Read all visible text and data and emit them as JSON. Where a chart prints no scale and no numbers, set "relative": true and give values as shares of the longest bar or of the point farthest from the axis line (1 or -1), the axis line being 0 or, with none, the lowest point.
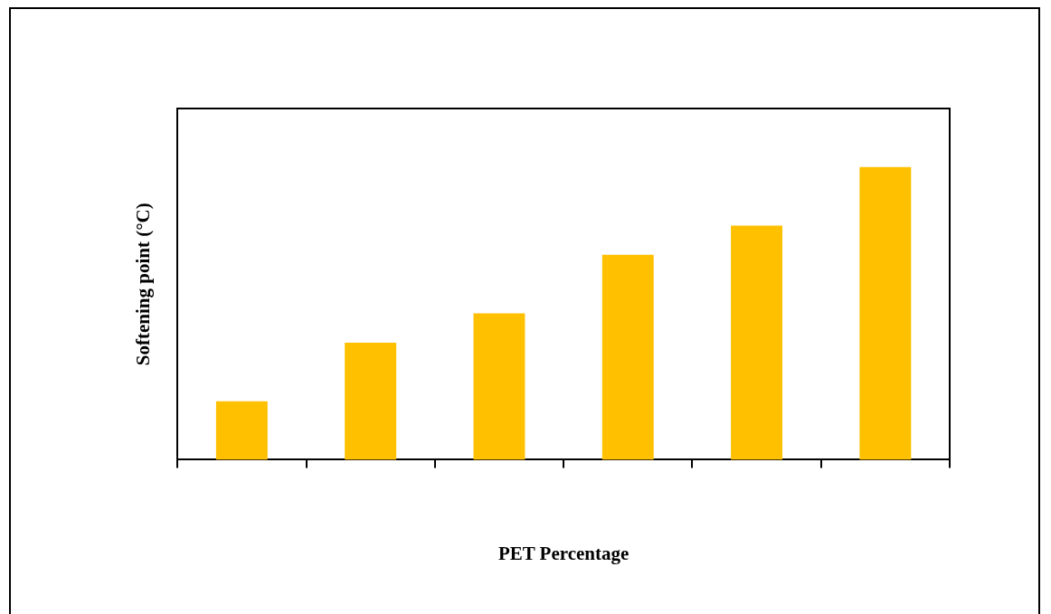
{
  "chart_data": {
    "type": "bar",
    "xlabel": "PET Percentage",
    "ylabel": "Softening point (°C)",
    "relative": true,
    "categories": [
      null,
      null,
      null,
      null,
      null,
      null
    ],
    "values": [
      0.2,
      0.4,
      0.5,
      0.7,
      0.8,
      1
    ],
    "color": "#ffc000"
  }
}
